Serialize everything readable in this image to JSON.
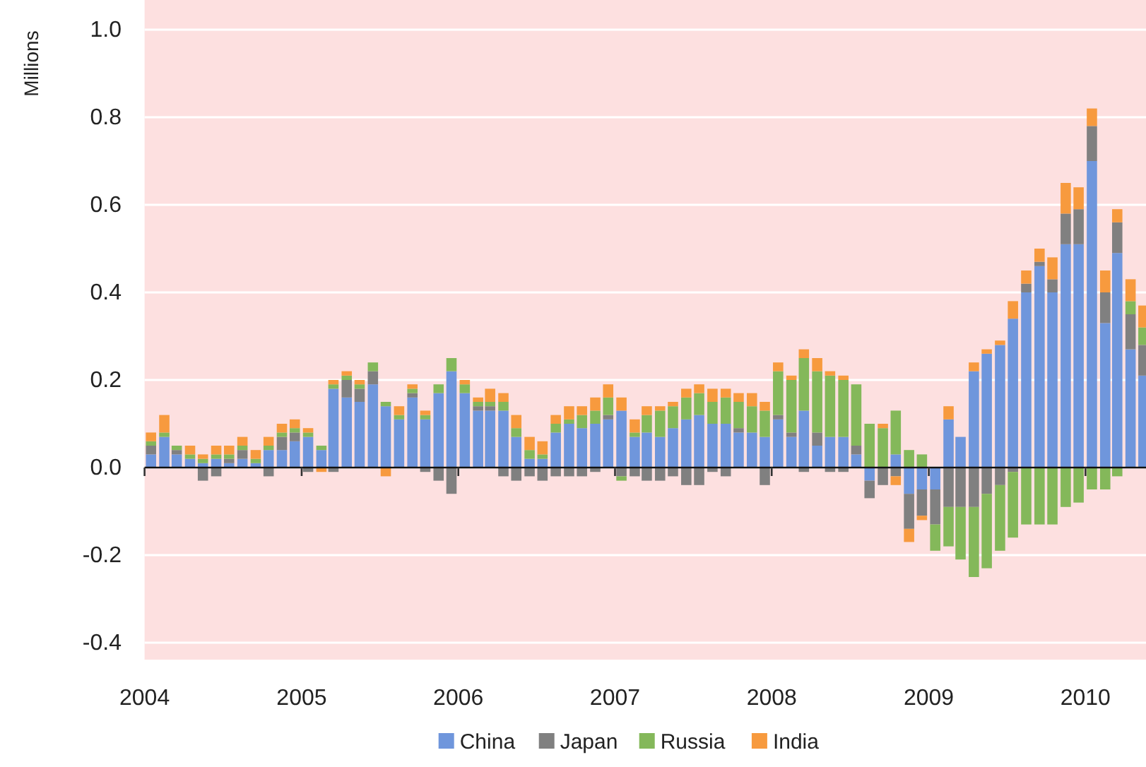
{
  "chart_data": {
    "type": "bar",
    "stacked": true,
    "ylabel": "Millions",
    "x": [
      "2004-01-16",
      "2004-02-16",
      "2004-03-16",
      "2004-04-16",
      "2004-05-16",
      "2004-06-16",
      "2004-07-16",
      "2004-08-16",
      "2004-09-16",
      "2004-10-16",
      "2004-11-16",
      "2004-12-16",
      "2005-01-16",
      "2005-02-16",
      "2005-03-16",
      "2005-04-16",
      "2005-05-16",
      "2005-06-16",
      "2005-07-16",
      "2005-08-16",
      "2005-09-16",
      "2005-10-16",
      "2005-11-16",
      "2005-12-16",
      "2006-01-16",
      "2006-02-16",
      "2006-03-16",
      "2006-04-16",
      "2006-05-16",
      "2006-06-16",
      "2006-07-16",
      "2006-08-16",
      "2006-09-16",
      "2006-10-16",
      "2006-11-16",
      "2006-12-16",
      "2007-01-16",
      "2007-02-16",
      "2007-03-16",
      "2007-04-16",
      "2007-05-16",
      "2007-06-16",
      "2007-07-16",
      "2007-08-16",
      "2007-09-16",
      "2007-10-16",
      "2007-11-16",
      "2007-12-16",
      "2008-01-16",
      "2008-02-16",
      "2008-03-16",
      "2008-04-16",
      "2008-05-16",
      "2008-06-16",
      "2008-07-16",
      "2008-08-16",
      "2008-09-16",
      "2008-10-16",
      "2008-11-16",
      "2008-12-16",
      "2009-01-16",
      "2009-02-16",
      "2009-03-16",
      "2009-04-16",
      "2009-05-16",
      "2009-06-16",
      "2009-07-16",
      "2009-08-16",
      "2009-09-16",
      "2009-10-16",
      "2009-11-16",
      "2009-12-16",
      "2010-01-16",
      "2010-02-16",
      "2010-03-16",
      "2010-04-16",
      "2010-05-16"
    ],
    "series": [
      {
        "name": "China",
        "color": "#6f96dc",
        "values": [
          0.03,
          0.07,
          0.03,
          0.02,
          0.01,
          0.02,
          0.01,
          0.02,
          0.01,
          0.04,
          0.04,
          0.06,
          0.07,
          0.04,
          0.18,
          0.16,
          0.15,
          0.19,
          0.14,
          0.11,
          0.16,
          0.11,
          0.17,
          0.22,
          0.17,
          0.13,
          0.13,
          0.13,
          0.07,
          0.02,
          0.02,
          0.08,
          0.1,
          0.09,
          0.1,
          0.11,
          0.13,
          0.07,
          0.08,
          0.07,
          0.09,
          0.11,
          0.12,
          0.1,
          0.1,
          0.08,
          0.08,
          0.07,
          0.11,
          0.07,
          0.13,
          0.05,
          0.07,
          0.07,
          0.03,
          -0.03,
          0,
          0.03,
          -0.06,
          -0.05,
          -0.05,
          0.11,
          0.07,
          0.22,
          0.26,
          0.28,
          0.34,
          0.4,
          0.46,
          0.4,
          0.51,
          0.51,
          0.7,
          0.33,
          0.49,
          0.27,
          0.21
        ]
      },
      {
        "name": "Japan",
        "color": "#808080",
        "values": [
          0.02,
          0,
          0.01,
          0,
          -0.03,
          -0.02,
          0.01,
          0.02,
          0,
          -0.02,
          0.03,
          0.02,
          -0.01,
          0,
          -0.01,
          0.04,
          0.03,
          0.03,
          0,
          0,
          0.01,
          -0.01,
          -0.03,
          -0.06,
          0,
          0.01,
          0.01,
          -0.02,
          -0.03,
          -0.02,
          -0.03,
          -0.02,
          -0.02,
          -0.02,
          -0.01,
          0.01,
          -0.02,
          -0.02,
          -0.03,
          -0.03,
          -0.02,
          -0.04,
          -0.04,
          -0.01,
          -0.02,
          0.01,
          0,
          -0.04,
          0.01,
          0.01,
          -0.01,
          0.03,
          -0.01,
          -0.01,
          0.02,
          -0.04,
          -0.04,
          -0.02,
          -0.08,
          -0.06,
          -0.08,
          -0.09,
          -0.09,
          -0.09,
          -0.06,
          -0.04,
          -0.01,
          0.02,
          0.01,
          0.03,
          0.07,
          0.08,
          0.08,
          0.07,
          0.07,
          0.08,
          0.07
        ]
      },
      {
        "name": "Russia",
        "color": "#84b85a",
        "values": [
          0.01,
          0.01,
          0.01,
          0.01,
          0.01,
          0.01,
          0.01,
          0.01,
          0.01,
          0.01,
          0.01,
          0.01,
          0.01,
          0.01,
          0.01,
          0.01,
          0.01,
          0.02,
          0.01,
          0.01,
          0.01,
          0.01,
          0.02,
          0.03,
          0.02,
          0.01,
          0.01,
          0.02,
          0.02,
          0.02,
          0.01,
          0.02,
          0.01,
          0.03,
          0.03,
          0.04,
          -0.01,
          0.01,
          0.04,
          0.06,
          0.05,
          0.05,
          0.05,
          0.05,
          0.06,
          0.06,
          0.06,
          0.06,
          0.1,
          0.12,
          0.12,
          0.14,
          0.14,
          0.13,
          0.14,
          0.1,
          0.09,
          0.1,
          0.04,
          0.03,
          -0.06,
          -0.09,
          -0.12,
          -0.16,
          -0.17,
          -0.15,
          -0.15,
          -0.13,
          -0.13,
          -0.13,
          -0.09,
          -0.08,
          -0.05,
          -0.05,
          -0.02,
          0.03,
          0.04
        ]
      },
      {
        "name": "India",
        "color": "#f79a3e",
        "values": [
          0.02,
          0.04,
          0,
          0.02,
          0.01,
          0.02,
          0.02,
          0.02,
          0.02,
          0.02,
          0.02,
          0.02,
          0.01,
          -0.01,
          0.01,
          0.01,
          0.01,
          0,
          -0.02,
          0.02,
          0.01,
          0.01,
          0,
          0,
          0.01,
          0.01,
          0.03,
          0.02,
          0.03,
          0.03,
          0.03,
          0.02,
          0.03,
          0.02,
          0.03,
          0.03,
          0.03,
          0.03,
          0.02,
          0.01,
          0.01,
          0.02,
          0.02,
          0.03,
          0.02,
          0.02,
          0.03,
          0.02,
          0.02,
          0.01,
          0.02,
          0.03,
          0.01,
          0.01,
          0,
          0,
          0.01,
          -0.02,
          -0.03,
          -0.01,
          0,
          0.03,
          0,
          0.02,
          0.01,
          0.01,
          0.04,
          0.03,
          0.03,
          0.05,
          0.07,
          0.05,
          0.04,
          0.05,
          0.03,
          0.05,
          0.05
        ]
      }
    ],
    "xlim": [
      "2004-01-01",
      "2010-05-22"
    ],
    "xticks": [
      "2004",
      "2005",
      "2006",
      "2007",
      "2008",
      "2009",
      "2010"
    ],
    "ylim": [
      -0.4,
      1.0
    ],
    "yticks": [
      -0.4,
      -0.2,
      {
        "value": 0,
        "label": "0.0"
      },
      0.2,
      0.4,
      0.6,
      0.8,
      {
        "value": 1.0,
        "label": "1.0"
      }
    ],
    "grid": "y",
    "legend": "bottom"
  }
}
